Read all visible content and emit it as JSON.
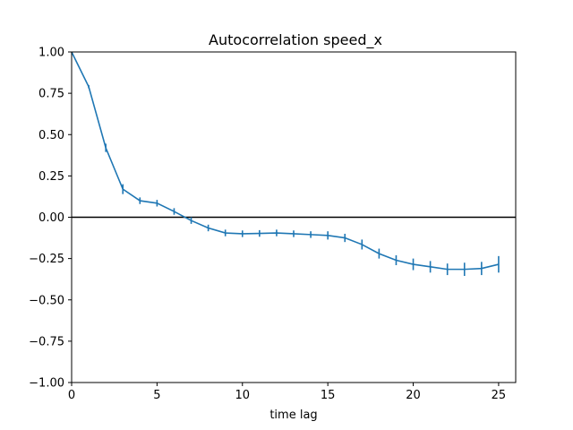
{
  "chart_data": {
    "type": "line",
    "title": "Autocorrelation speed_x",
    "xlabel": "time lag",
    "ylabel": "",
    "xlim": [
      0,
      26
    ],
    "ylim": [
      -1.0,
      1.0
    ],
    "xticks": [
      0,
      5,
      10,
      15,
      20,
      25
    ],
    "xtick_labels": [
      "0",
      "5",
      "10",
      "15",
      "20",
      "25"
    ],
    "yticks": [
      -1.0,
      -0.75,
      -0.5,
      -0.25,
      0.0,
      0.25,
      0.5,
      0.75,
      1.0
    ],
    "ytick_labels": [
      "−1.00",
      "−0.75",
      "−0.50",
      "−0.25",
      "0.00",
      "0.25",
      "0.50",
      "0.75",
      "1.00"
    ],
    "grid": false,
    "reference_line_y": 0.0,
    "reference_line_color": "#000000",
    "series": [
      {
        "color": "#1f77b4",
        "x": [
          0,
          1,
          2,
          3,
          4,
          5,
          6,
          7,
          8,
          9,
          10,
          11,
          12,
          13,
          14,
          15,
          16,
          17,
          18,
          19,
          20,
          21,
          22,
          23,
          24,
          25
        ],
        "y": [
          1.0,
          0.79,
          0.42,
          0.17,
          0.1,
          0.085,
          0.035,
          -0.02,
          -0.065,
          -0.095,
          -0.1,
          -0.098,
          -0.095,
          -0.1,
          -0.105,
          -0.11,
          -0.125,
          -0.165,
          -0.22,
          -0.26,
          -0.285,
          -0.3,
          -0.315,
          -0.315,
          -0.31,
          -0.285
        ],
        "yerr": [
          0.0,
          0.01,
          0.025,
          0.03,
          0.02,
          0.02,
          0.02,
          0.02,
          0.02,
          0.02,
          0.02,
          0.02,
          0.02,
          0.02,
          0.02,
          0.025,
          0.025,
          0.03,
          0.03,
          0.03,
          0.035,
          0.035,
          0.035,
          0.04,
          0.04,
          0.05
        ]
      }
    ]
  }
}
